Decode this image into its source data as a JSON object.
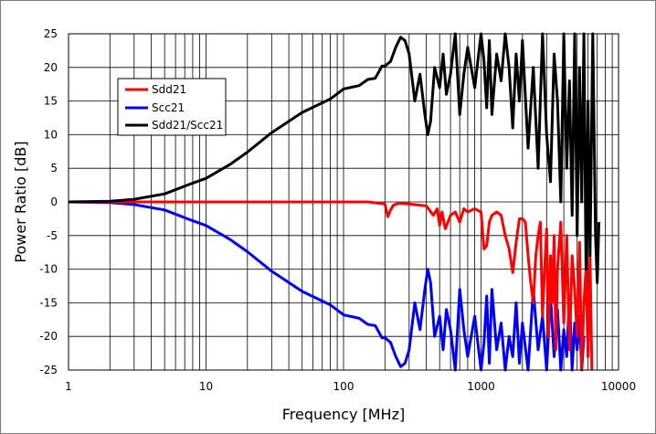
{
  "chart_data": {
    "type": "line",
    "title": "",
    "xlabel": "Frequency [MHz]",
    "ylabel": "Power Ratio [dB]",
    "xscale": "log",
    "xlim": [
      1,
      10000
    ],
    "ylim": [
      -25,
      25
    ],
    "x_ticks": [
      "1",
      "10",
      "100",
      "1000",
      "10000"
    ],
    "y_ticks": [
      "25",
      "20",
      "15",
      "10",
      "5",
      "0",
      "-5",
      "-10",
      "-15",
      "-20",
      "-25"
    ],
    "grid": true,
    "legend_position": "upper-left",
    "series": [
      {
        "name": "Sdd21",
        "color": "#ff0000",
        "x": [
          1,
          2,
          5,
          10,
          20,
          50,
          100,
          150,
          200,
          210,
          220,
          230,
          250,
          300,
          400,
          450,
          480,
          500,
          520,
          550,
          600,
          650,
          700,
          750,
          800,
          900,
          1000,
          1050,
          1100,
          1150,
          1200,
          1300,
          1400,
          1500,
          1600,
          1700,
          1800,
          1900,
          2000,
          2100,
          2200,
          2300,
          2400,
          2500,
          2600,
          2700,
          2800,
          2900,
          3000,
          3100,
          3200,
          3300,
          3400,
          3500,
          3600,
          3800,
          4000,
          4200,
          4400,
          4600,
          4800,
          5000,
          5200,
          5400,
          5600,
          5800,
          6000,
          6200,
          6400
        ],
        "y": [
          0,
          0,
          0,
          0,
          0,
          0,
          0,
          0,
          -0.3,
          -2.2,
          -1.2,
          -0.5,
          -0.2,
          -0.3,
          -0.6,
          -2,
          -1,
          -3.5,
          -1.5,
          -4,
          -2,
          -1.5,
          -3,
          -1,
          -1.5,
          -1,
          -1.5,
          -7,
          -6.5,
          -3,
          -2,
          -1.5,
          -2,
          -5,
          -7,
          -10.5,
          -6,
          -2.5,
          -2.5,
          -3,
          -8,
          -12,
          -15,
          -8,
          -5,
          -3,
          -17,
          -10,
          -4,
          -20,
          -8,
          -15,
          -5,
          -22,
          -10,
          -3,
          -18,
          -5,
          -22,
          -8,
          -13,
          -20,
          -6,
          -25,
          -15,
          -10,
          -23,
          -8,
          -25
        ]
      },
      {
        "name": "Scc21",
        "color": "#0000ff",
        "x": [
          1,
          2,
          3,
          5,
          8,
          10,
          15,
          20,
          30,
          50,
          80,
          100,
          130,
          150,
          170,
          180,
          190,
          200,
          220,
          240,
          260,
          280,
          300,
          330,
          360,
          390,
          410,
          430,
          460,
          500,
          530,
          560,
          600,
          650,
          700,
          750,
          800,
          900,
          1000,
          1050,
          1100,
          1150,
          1200,
          1300,
          1400,
          1500,
          1600,
          1700,
          1800,
          1900,
          2000,
          2200,
          2400,
          2600,
          2800,
          3000,
          3200,
          3400,
          3600,
          3800,
          4000,
          4200,
          4400,
          4600,
          4800,
          5000,
          5200,
          5400,
          5600
        ],
        "y": [
          0,
          -0.1,
          -0.4,
          -1.2,
          -2.8,
          -3.5,
          -5.6,
          -7.4,
          -10.3,
          -13.3,
          -15.3,
          -16.8,
          -17.3,
          -18.2,
          -18.4,
          -19.3,
          -20.2,
          -20.2,
          -20.9,
          -23,
          -24.5,
          -24,
          -22,
          -15,
          -19,
          -13,
          -10,
          -12,
          -20,
          -17,
          -22,
          -16,
          -19,
          -25,
          -13,
          -19,
          -23,
          -17,
          -25,
          -21,
          -14,
          -24,
          -13,
          -22,
          -18,
          -25,
          -20,
          -23,
          -15,
          -24,
          -18,
          -25,
          -13,
          -22,
          -17,
          -25,
          -14,
          -23,
          -16,
          -25,
          -19,
          -23,
          -14,
          -25,
          -18,
          -22,
          -17,
          -25,
          -20
        ]
      },
      {
        "name": "Sdd21/Scc21",
        "color": "#000000",
        "x": [
          1,
          2,
          3,
          5,
          8,
          10,
          15,
          20,
          30,
          50,
          80,
          100,
          130,
          150,
          170,
          180,
          190,
          200,
          220,
          240,
          260,
          280,
          300,
          330,
          360,
          390,
          410,
          430,
          460,
          500,
          530,
          560,
          600,
          650,
          700,
          750,
          800,
          900,
          1000,
          1050,
          1100,
          1150,
          1200,
          1300,
          1400,
          1500,
          1600,
          1700,
          1800,
          1900,
          2000,
          2200,
          2400,
          2600,
          2800,
          3000,
          3200,
          3400,
          3600,
          3800,
          4000,
          4200,
          4400,
          4600,
          4800,
          5000,
          5200,
          5400,
          5600,
          5800,
          6000,
          6200,
          6500,
          6800,
          7000,
          7200
        ],
        "y": [
          0,
          0.1,
          0.4,
          1.2,
          2.8,
          3.5,
          5.6,
          7.4,
          10.3,
          13.3,
          15.3,
          16.8,
          17.3,
          18.2,
          18.4,
          19.3,
          20.2,
          20.2,
          20.9,
          23,
          24.5,
          24,
          22,
          15,
          19,
          13,
          10,
          12,
          20,
          17,
          22,
          16,
          19,
          25,
          13,
          19,
          23,
          17,
          25,
          21,
          14,
          24,
          13,
          22,
          18,
          25,
          20,
          11,
          22,
          15,
          24,
          8,
          20,
          5,
          25,
          10,
          3,
          22,
          15,
          0,
          25,
          5,
          18,
          -2,
          25,
          -5,
          20,
          0,
          25,
          -10,
          15,
          -8,
          25,
          -5,
          -12,
          -3
        ]
      }
    ]
  }
}
